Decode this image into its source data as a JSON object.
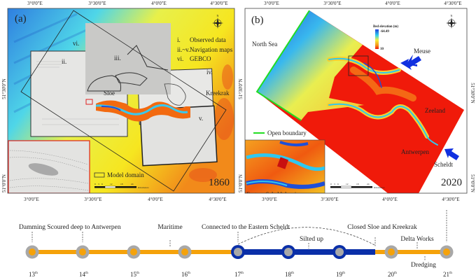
{
  "panel_a": {
    "label": "(a)",
    "year": "1860",
    "lon_ticks_top": [
      "3°0'0\"E",
      "3°30'0\"E",
      "4°0'0\"E",
      "4°30'0\"E"
    ],
    "lon_ticks_bottom": [
      "3°0'0\"E",
      "3°30'0\"E",
      "4°0'0\"E",
      "4°30'0\"E"
    ],
    "lat_ticks": [
      "51°30'0\"N",
      "51°0'0\"N"
    ],
    "legend": [
      {
        "key": "i.",
        "text": "Observed data"
      },
      {
        "key": "ii.~v.",
        "text": "Navigation maps"
      },
      {
        "key": "vi.",
        "text": "GEBCO"
      }
    ],
    "source_labels": [
      "ii.",
      "iii.",
      "iv.",
      "v.",
      "vi."
    ],
    "place_labels": {
      "sloe": "Sloe",
      "kreekrak": "Kreekrak"
    },
    "model_domain_label": "Model domain",
    "scale_ticks": [
      "0",
      "3",
      "6",
      "12",
      "18",
      "24"
    ],
    "scale_unit": "Kilometers",
    "compass": {
      "n": "N",
      "s": "S",
      "e": "E",
      "w": "W"
    }
  },
  "panel_b": {
    "label": "(b)",
    "year": "2020",
    "lon_ticks_top": [
      "3°0'0\"E",
      "3°30'0\"E",
      "4°0'0\"E",
      "4°30'0\"E"
    ],
    "lon_ticks_bottom": [
      "3°0'0\"E",
      "3°30'0\"E",
      "4°0'0\"E",
      "4°30'0\"E"
    ],
    "lat_ticks": [
      "51°30'0\"N",
      "51°0'0\"N"
    ],
    "colorbar": {
      "title": "Bed elevation (m)",
      "max_label": "-64.49",
      "min_label": "10",
      "colors": [
        "#1f3fd8",
        "#2fd0f0",
        "#f5f03a",
        "#f59a1a",
        "#f01a0a"
      ]
    },
    "place_labels": {
      "north_sea": "North Sea",
      "meuse": "Meuse",
      "zeeland": "Zeeland",
      "antwerpen": "Antwerpen",
      "scheldt": "Scheldt"
    },
    "open_boundary_label": "Open boundary",
    "inset_label": "Eastern Scheldt barrier",
    "scale_ticks": [
      "0",
      "3",
      "6",
      "12",
      "18",
      "24"
    ],
    "scale_unit": "Kilometers",
    "compass": {
      "n": "N",
      "s": "S",
      "e": "E",
      "w": "W"
    }
  },
  "timeline": {
    "centuries": [
      {
        "num": "13",
        "sup": "th",
        "phase": "orange"
      },
      {
        "num": "14",
        "sup": "th",
        "phase": "orange"
      },
      {
        "num": "15",
        "sup": "th",
        "phase": "orange"
      },
      {
        "num": "16",
        "sup": "th",
        "phase": "orange"
      },
      {
        "num": "17",
        "sup": "th",
        "phase": "blue"
      },
      {
        "num": "18",
        "sup": "th",
        "phase": "blue"
      },
      {
        "num": "19",
        "sup": "th",
        "phase": "blue"
      },
      {
        "num": "20",
        "sup": "th",
        "phase": "orange"
      },
      {
        "num": "21",
        "sup": "th",
        "phase": "orange"
      }
    ],
    "events": {
      "damming": "Damming",
      "scoured": "Scoured deep to Antwerpen",
      "maritime": "Maritime",
      "connected": "Connected to the Eastern Scheldt",
      "silted": "Silted up",
      "closed": "Closed Sloe and  Kreekrak",
      "delta": "Delta Works",
      "dredging": "Dredging"
    },
    "colors": {
      "orange": "#f5a20a",
      "blue": "#0a2fa8",
      "node": "#a8a8a8"
    }
  }
}
